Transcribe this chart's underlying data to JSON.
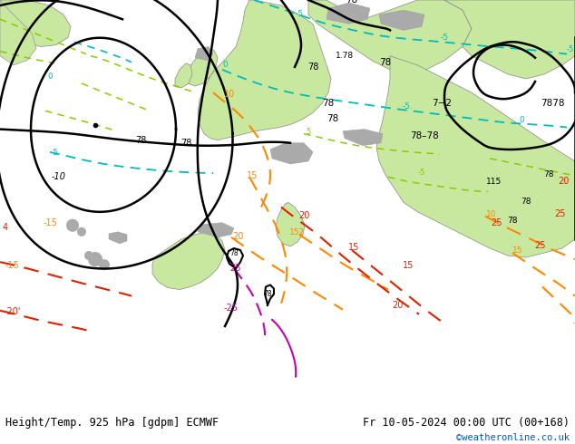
{
  "title_left": "Height/Temp. 925 hPa [gdpm] ECMWF",
  "title_right": "Fr 10-05-2024 00:00 UTC (00+168)",
  "credit": "©weatheronline.co.uk",
  "ocean_color": "#d0d0d0",
  "land_green_light": "#c8e8a0",
  "land_green_med": "#b0d880",
  "gray_terrain": "#a8a8a8",
  "bottom_bar_color": "#ffffff",
  "bottom_text_color": "#000000",
  "credit_color": "#0055cc",
  "fig_width": 6.34,
  "fig_height": 4.9,
  "cyan_color": "#00bbbb",
  "orange_color": "#ff8800",
  "red_color": "#dd2200",
  "magenta_color": "#cc00aa",
  "green_line_color": "#88cc00",
  "black_contour": "#000000"
}
